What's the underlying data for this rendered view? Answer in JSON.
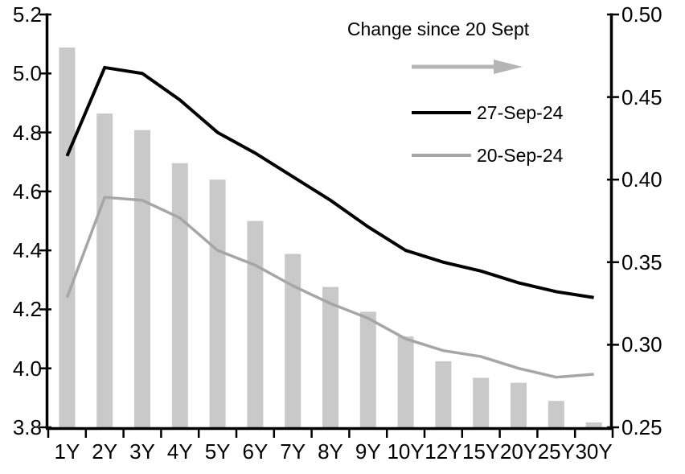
{
  "chart_data": {
    "type": "combo-bar-line",
    "title": "Change since 20 Sept",
    "categories": [
      "1Y",
      "2Y",
      "3Y",
      "4Y",
      "5Y",
      "6Y",
      "7Y",
      "8Y",
      "9Y",
      "10Y",
      "12Y",
      "15Y",
      "20Y",
      "25Y",
      "30Y"
    ],
    "bar_series": {
      "name": "Change since 20 Sept",
      "axis": "right",
      "color": "#c9c9c9",
      "values": [
        0.48,
        0.44,
        0.43,
        0.41,
        0.4,
        0.375,
        0.355,
        0.335,
        0.32,
        0.305,
        0.29,
        0.28,
        0.277,
        0.266,
        0.253
      ]
    },
    "series": [
      {
        "name": "27-Sep-24",
        "type": "line",
        "axis": "left",
        "color": "#000000",
        "stroke_width": 4,
        "values": [
          4.72,
          5.02,
          5.0,
          4.91,
          4.8,
          4.73,
          4.65,
          4.57,
          4.48,
          4.4,
          4.36,
          4.33,
          4.29,
          4.26,
          4.24
        ]
      },
      {
        "name": "20-Sep-24",
        "type": "line",
        "axis": "left",
        "color": "#a6a6a6",
        "stroke_width": 3.5,
        "values": [
          4.24,
          4.58,
          4.57,
          4.51,
          4.4,
          4.35,
          4.28,
          4.22,
          4.17,
          4.1,
          4.06,
          4.04,
          4.0,
          3.97,
          3.98
        ]
      }
    ],
    "left_axis": {
      "min": 3.8,
      "max": 5.2,
      "step": 0.2,
      "tick_labels": [
        "5.2",
        "5.0",
        "4.8",
        "4.6",
        "4.4",
        "4.2",
        "4.0",
        "3.8"
      ]
    },
    "right_axis": {
      "min": 0.25,
      "max": 0.5,
      "step": 0.05,
      "tick_labels": [
        "0.50",
        "0.45",
        "0.40",
        "0.35",
        "0.30",
        "0.25"
      ]
    },
    "axis_color": "#000000",
    "grid": "off",
    "legend": {
      "position": "top-right-inside",
      "title": "Change since 20 Sept",
      "arrow_color": "#b5b5b5",
      "entries": [
        {
          "label": "27-Sep-24",
          "color": "#000000"
        },
        {
          "label": "20-Sep-24",
          "color": "#a6a6a6"
        }
      ]
    }
  }
}
